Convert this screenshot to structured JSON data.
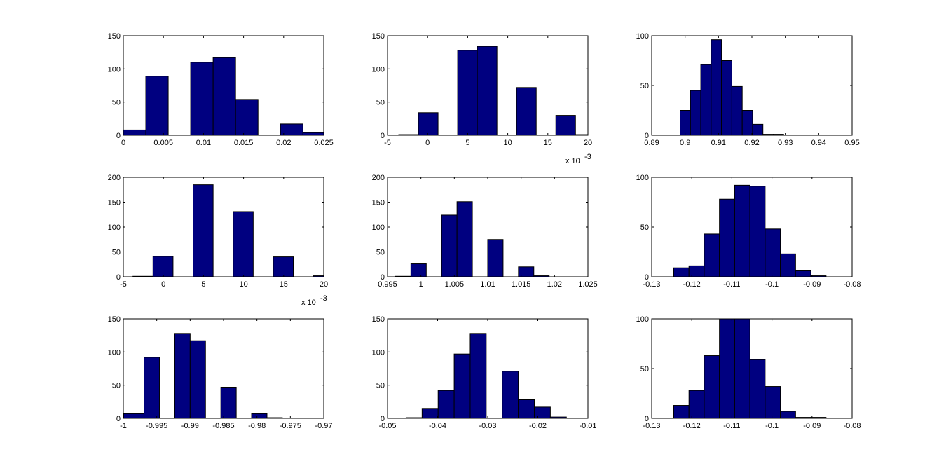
{
  "figure": {
    "background": "#ffffff",
    "bar_color": "#000080",
    "bar_edge": "#000000"
  },
  "chart_data": [
    {
      "type": "bar",
      "title": "",
      "xlabel": "",
      "ylabel": "",
      "xlim": [
        0,
        0.025
      ],
      "ylim": [
        0,
        150
      ],
      "xticks": [
        0,
        0.005,
        0.01,
        0.015,
        0.02,
        0.025
      ],
      "xtick_labels": [
        "0",
        "0.005",
        "0.01",
        "0.015",
        "0.02",
        "0.025"
      ],
      "yticks": [
        0,
        50,
        100,
        150
      ],
      "ytick_labels": [
        "0",
        "50",
        "100",
        "150"
      ],
      "bins": [
        [
          0,
          0.0028,
          8
        ],
        [
          0.0028,
          0.0056,
          89
        ],
        [
          0.0056,
          0.0084,
          0
        ],
        [
          0.0084,
          0.0112,
          110
        ],
        [
          0.0112,
          0.014,
          117
        ],
        [
          0.014,
          0.0168,
          54
        ],
        [
          0.0168,
          0.0196,
          0
        ],
        [
          0.0196,
          0.0224,
          17
        ],
        [
          0.0224,
          0.0252,
          4
        ]
      ],
      "exponent_label": ""
    },
    {
      "type": "bar",
      "title": "",
      "xlabel": "",
      "ylabel": "",
      "xlim": [
        -5,
        20
      ],
      "ylim": [
        0,
        150
      ],
      "xticks": [
        -5,
        0,
        5,
        10,
        15,
        20
      ],
      "xtick_labels": [
        "-5",
        "0",
        "5",
        "10",
        "15",
        "20"
      ],
      "yticks": [
        0,
        50,
        100,
        150
      ],
      "ytick_labels": [
        "0",
        "50",
        "100",
        "150"
      ],
      "bins": [
        [
          -3.6,
          -1.15,
          1
        ],
        [
          -1.15,
          1.3,
          34
        ],
        [
          1.3,
          3.75,
          0
        ],
        [
          3.75,
          6.2,
          128
        ],
        [
          6.2,
          8.65,
          134
        ],
        [
          8.65,
          11.1,
          0
        ],
        [
          11.1,
          13.55,
          72
        ],
        [
          13.55,
          16.0,
          0
        ],
        [
          16.0,
          18.45,
          30
        ],
        [
          18.45,
          20.9,
          1
        ]
      ],
      "exponent_label": "x 10"
    },
    {
      "type": "bar",
      "title": "",
      "xlabel": "",
      "ylabel": "",
      "xlim": [
        0.89,
        0.95
      ],
      "ylim": [
        0,
        100
      ],
      "xticks": [
        0.89,
        0.9,
        0.91,
        0.92,
        0.93,
        0.94,
        0.95
      ],
      "xtick_labels": [
        "0.89",
        "0.9",
        "0.91",
        "0.92",
        "0.93",
        "0.94",
        "0.95"
      ],
      "yticks": [
        0,
        50,
        100
      ],
      "ytick_labels": [
        "0",
        "50",
        "100"
      ],
      "bins": [
        [
          0.8985,
          0.9016,
          25
        ],
        [
          0.9016,
          0.9047,
          45
        ],
        [
          0.9047,
          0.9078,
          71
        ],
        [
          0.9078,
          0.9109,
          96
        ],
        [
          0.9109,
          0.914,
          75
        ],
        [
          0.914,
          0.9171,
          49
        ],
        [
          0.9171,
          0.9202,
          25
        ],
        [
          0.9202,
          0.9233,
          11
        ],
        [
          0.9233,
          0.9264,
          1
        ],
        [
          0.9264,
          0.9295,
          1
        ]
      ],
      "exponent_label": ""
    },
    {
      "type": "bar",
      "title": "",
      "xlabel": "",
      "ylabel": "",
      "xlim": [
        -5,
        20
      ],
      "ylim": [
        0,
        200
      ],
      "xticks": [
        -5,
        0,
        5,
        10,
        15,
        20
      ],
      "xtick_labels": [
        "-5",
        "0",
        "5",
        "10",
        "15",
        "20"
      ],
      "yticks": [
        0,
        50,
        100,
        150,
        200
      ],
      "ytick_labels": [
        "0",
        "50",
        "100",
        "150",
        "200"
      ],
      "bins": [
        [
          -3.8,
          -1.3,
          1
        ],
        [
          -1.3,
          1.2,
          41
        ],
        [
          1.2,
          3.7,
          0
        ],
        [
          3.7,
          6.2,
          185
        ],
        [
          6.2,
          8.7,
          0
        ],
        [
          8.7,
          11.2,
          131
        ],
        [
          11.2,
          13.7,
          0
        ],
        [
          13.7,
          16.2,
          40
        ],
        [
          16.2,
          18.7,
          0
        ],
        [
          18.7,
          21.2,
          2
        ]
      ],
      "exponent_label": "x 10"
    },
    {
      "type": "bar",
      "title": "",
      "xlabel": "",
      "ylabel": "",
      "xlim": [
        0.995,
        1.025
      ],
      "ylim": [
        0,
        200
      ],
      "xticks": [
        0.995,
        1,
        1.005,
        1.01,
        1.015,
        1.02,
        1.025
      ],
      "xtick_labels": [
        "0.995",
        "1",
        "1.005",
        "1.01",
        "1.015",
        "1.02",
        "1.025"
      ],
      "yticks": [
        0,
        50,
        100,
        150,
        200
      ],
      "ytick_labels": [
        "0",
        "50",
        "100",
        "150",
        "200"
      ],
      "bins": [
        [
          0.9962,
          0.9985,
          1
        ],
        [
          0.9985,
          1.0008,
          26
        ],
        [
          1.0008,
          1.0031,
          0
        ],
        [
          1.0031,
          1.0054,
          124
        ],
        [
          1.0054,
          1.0077,
          151
        ],
        [
          1.0077,
          1.01,
          0
        ],
        [
          1.01,
          1.0123,
          75
        ],
        [
          1.0123,
          1.0146,
          0
        ],
        [
          1.0146,
          1.0169,
          20
        ],
        [
          1.0169,
          1.0192,
          2
        ]
      ],
      "exponent_label": ""
    },
    {
      "type": "bar",
      "title": "",
      "xlabel": "",
      "ylabel": "",
      "xlim": [
        -0.13,
        -0.08
      ],
      "ylim": [
        0,
        100
      ],
      "xticks": [
        -0.13,
        -0.12,
        -0.11,
        -0.1,
        -0.09,
        -0.08
      ],
      "xtick_labels": [
        "-0.13",
        "-0.12",
        "-0.11",
        "-0.1",
        "-0.09",
        "-0.08"
      ],
      "yticks": [
        0,
        50,
        100
      ],
      "ytick_labels": [
        "0",
        "50",
        "100"
      ],
      "bins": [
        [
          -0.1245,
          -0.1207,
          9
        ],
        [
          -0.1207,
          -0.1169,
          11
        ],
        [
          -0.1169,
          -0.1131,
          43
        ],
        [
          -0.1131,
          -0.1093,
          78
        ],
        [
          -0.1093,
          -0.1055,
          92
        ],
        [
          -0.1055,
          -0.1017,
          91
        ],
        [
          -0.1017,
          -0.0979,
          48
        ],
        [
          -0.0979,
          -0.0941,
          23
        ],
        [
          -0.0941,
          -0.0903,
          6
        ],
        [
          -0.0903,
          -0.0865,
          1
        ]
      ],
      "exponent_label": ""
    },
    {
      "type": "bar",
      "title": "",
      "xlabel": "",
      "ylabel": "",
      "xlim": [
        -1,
        -0.97
      ],
      "ylim": [
        0,
        150
      ],
      "xticks": [
        -1,
        -0.995,
        -0.99,
        -0.985,
        -0.98,
        -0.975,
        -0.97
      ],
      "xtick_labels": [
        "-1",
        "-0.995",
        "-0.99",
        "-0.985",
        "-0.98",
        "-0.975",
        "-0.97"
      ],
      "yticks": [
        0,
        50,
        100,
        150
      ],
      "ytick_labels": [
        "0",
        "50",
        "100",
        "150"
      ],
      "bins": [
        [
          -0.99995,
          -0.9969,
          7
        ],
        [
          -0.9969,
          -0.9946,
          92
        ],
        [
          -0.9946,
          -0.9923,
          0
        ],
        [
          -0.9923,
          -0.99,
          128
        ],
        [
          -0.99,
          -0.9877,
          117
        ],
        [
          -0.9877,
          -0.9854,
          0
        ],
        [
          -0.9854,
          -0.9831,
          47
        ],
        [
          -0.9831,
          -0.9808,
          0
        ],
        [
          -0.9808,
          -0.9785,
          7
        ],
        [
          -0.9785,
          -0.9762,
          1
        ]
      ],
      "exponent_label": ""
    },
    {
      "type": "bar",
      "title": "",
      "xlabel": "",
      "ylabel": "",
      "xlim": [
        -0.05,
        -0.01
      ],
      "ylim": [
        0,
        150
      ],
      "xticks": [
        -0.05,
        -0.04,
        -0.03,
        -0.02,
        -0.01
      ],
      "xtick_labels": [
        "-0.05",
        "-0.04",
        "-0.03",
        "-0.02",
        "-0.01"
      ],
      "yticks": [
        0,
        50,
        100,
        150
      ],
      "ytick_labels": [
        "0",
        "50",
        "100",
        "150"
      ],
      "bins": [
        [
          -0.0463,
          -0.0431,
          1
        ],
        [
          -0.0431,
          -0.0399,
          15
        ],
        [
          -0.0399,
          -0.0367,
          42
        ],
        [
          -0.0367,
          -0.0335,
          97
        ],
        [
          -0.0335,
          -0.0303,
          128
        ],
        [
          -0.0303,
          -0.0271,
          0
        ],
        [
          -0.0271,
          -0.0239,
          71
        ],
        [
          -0.0239,
          -0.0207,
          28
        ],
        [
          -0.0207,
          -0.0175,
          17
        ],
        [
          -0.0175,
          -0.0143,
          2
        ]
      ],
      "exponent_label": ""
    },
    {
      "type": "bar",
      "title": "",
      "xlabel": "",
      "ylabel": "",
      "xlim": [
        -0.13,
        -0.08
      ],
      "ylim": [
        0,
        100
      ],
      "xticks": [
        -0.13,
        -0.12,
        -0.11,
        -0.1,
        -0.09,
        -0.08
      ],
      "xtick_labels": [
        "-0.13",
        "-0.12",
        "-0.11",
        "-0.1",
        "-0.09",
        "-0.08"
      ],
      "yticks": [
        0,
        50,
        100
      ],
      "ytick_labels": [
        "0",
        "50",
        "100"
      ],
      "bins": [
        [
          -0.1245,
          -0.1207,
          13
        ],
        [
          -0.1207,
          -0.1169,
          28
        ],
        [
          -0.1169,
          -0.1131,
          63
        ],
        [
          -0.1131,
          -0.1093,
          100
        ],
        [
          -0.1093,
          -0.1055,
          100
        ],
        [
          -0.1055,
          -0.1017,
          59
        ],
        [
          -0.1017,
          -0.0979,
          32
        ],
        [
          -0.0979,
          -0.0941,
          7
        ],
        [
          -0.0941,
          -0.0903,
          1
        ],
        [
          -0.0903,
          -0.0865,
          1
        ]
      ],
      "exponent_label": ""
    }
  ]
}
